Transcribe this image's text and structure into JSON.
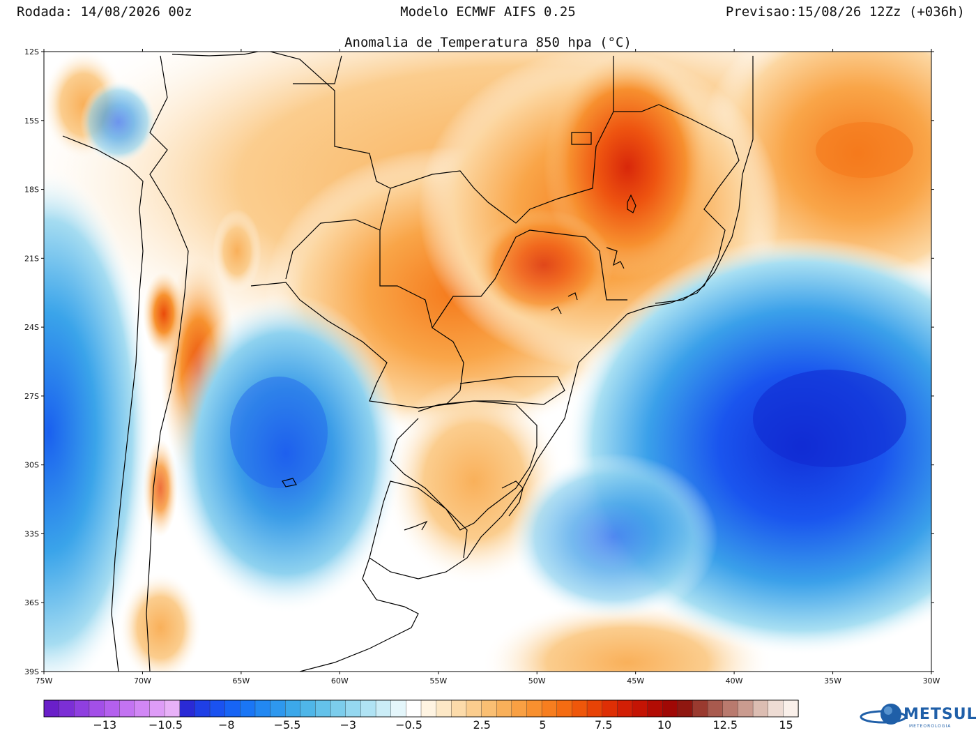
{
  "header": {
    "run": "Rodada: 14/08/2026 00z",
    "model": "Modelo ECMWF AIFS 0.25",
    "forecast": "Previsao:15/08/26 12Zz (+036h)"
  },
  "map": {
    "title": "Anomalia de Temperatura 850 hpa (°C)",
    "lat_labels": [
      "12S",
      "15S",
      "18S",
      "21S",
      "24S",
      "27S",
      "30S",
      "33S",
      "36S",
      "39S"
    ],
    "lon_labels": [
      "75W",
      "70W",
      "65W",
      "60W",
      "55W",
      "50W",
      "45W",
      "40W",
      "35W",
      "30W"
    ]
  },
  "colorbar": {
    "labels": [
      "-13",
      "-10.5",
      "-8",
      "-5.5",
      "-3",
      "-0.5",
      "2.5",
      "5",
      "7.5",
      "10",
      "12.5",
      "15"
    ],
    "colors": [
      "#6a1fc9",
      "#7c2fd6",
      "#8f3fe0",
      "#a34fe8",
      "#b460ee",
      "#c373f2",
      "#d187f5",
      "#de9cf7",
      "#e8b1f8",
      "#2a2ad6",
      "#1f3fe6",
      "#1a52f0",
      "#1764f5",
      "#1a76f5",
      "#2288f2",
      "#2e98ee",
      "#3ca8ea",
      "#4fb6e8",
      "#64c2ea",
      "#7ccdec",
      "#95d8f0",
      "#b0e3f4",
      "#cbedf7",
      "#e4f6fb",
      "#ffffff",
      "#fff4e2",
      "#fde8c6",
      "#fcdbaa",
      "#fbcd8e",
      "#fabf73",
      "#f9b05a",
      "#f9a043",
      "#f8902f",
      "#f77e1f",
      "#f46c12",
      "#ef570a",
      "#e84306",
      "#de2f05",
      "#d21f05",
      "#c41404",
      "#b20c04",
      "#a00805",
      "#8f1710",
      "#9a3a2f",
      "#a85a4e",
      "#b97a6e",
      "#ca9b8f",
      "#dcbdb2",
      "#eedcd4",
      "#faf0ea"
    ]
  },
  "logo": {
    "name": "METSUL",
    "sub": "METEOROLOGIA"
  }
}
